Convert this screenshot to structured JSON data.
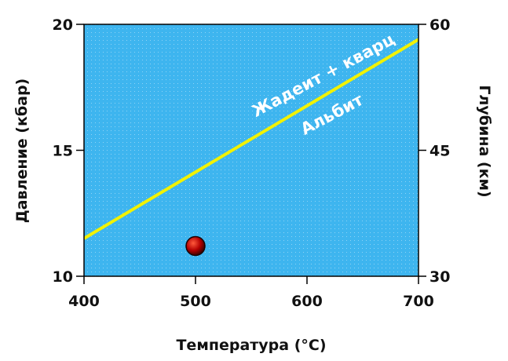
{
  "chart_data": {
    "type": "line",
    "xlabel": "Температура (°C)",
    "ylabel": "Давление (кбар)",
    "y2label": "Глубина (км)",
    "xlim": [
      400,
      700
    ],
    "ylim": [
      10,
      20
    ],
    "y2lim": [
      30,
      60
    ],
    "x_ticks": [
      400,
      500,
      600,
      700
    ],
    "y_ticks": [
      10,
      15,
      20
    ],
    "y2_ticks": [
      30,
      45,
      60
    ],
    "grid": false,
    "series": [
      {
        "name": "",
        "type": "line",
        "x": [
          400,
          700
        ],
        "y": [
          11.5,
          19.4
        ],
        "color": "#f2f200"
      }
    ],
    "points": [
      {
        "x": 500,
        "y": 11.2,
        "color": "#b30000"
      }
    ],
    "region_labels": {
      "upper": "Жадеит + кварц",
      "lower": "Альбит"
    },
    "colors": {
      "plot_background": "#3eb5ef",
      "boundary_line": "#f2f200",
      "point": "#b30000",
      "frame": "#000000"
    }
  }
}
